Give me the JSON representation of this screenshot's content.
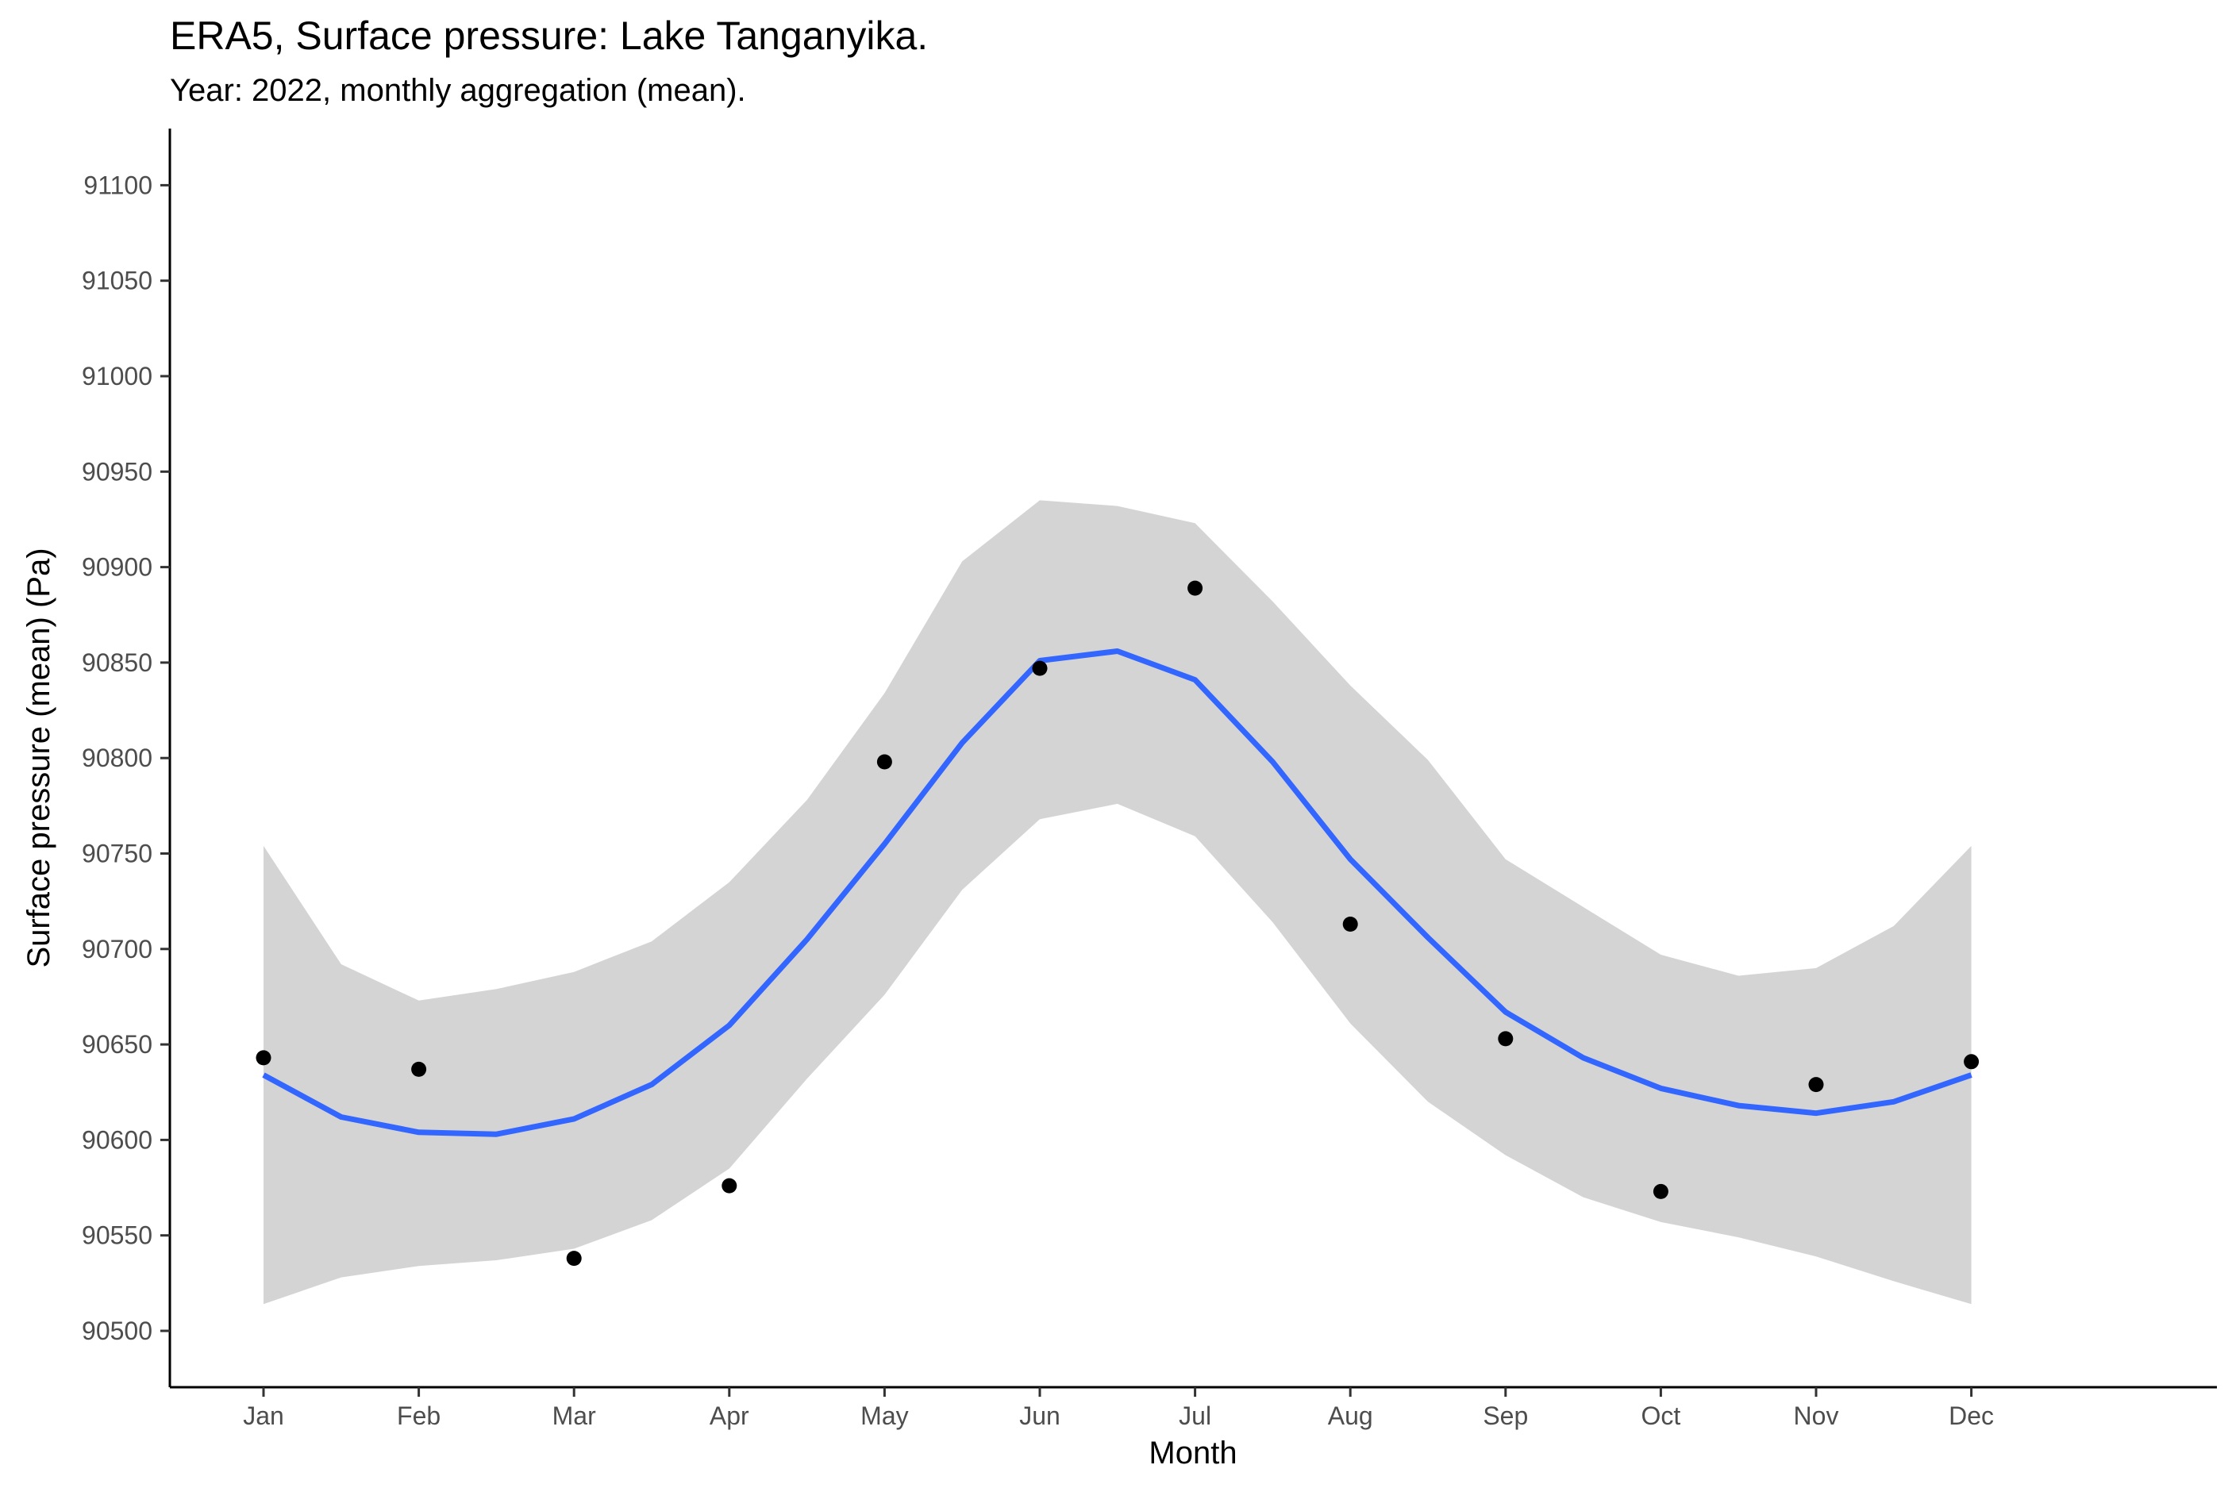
{
  "chart_data": {
    "type": "scatter",
    "title": "ERA5, Surface pressure: Lake Tanganyika.",
    "subtitle": "Year: 2022, monthly aggregation (mean).",
    "xlabel": "Month",
    "ylabel": "Surface pressure (mean) (Pa)",
    "categories": [
      "Jan",
      "Feb",
      "Mar",
      "Apr",
      "May",
      "Jun",
      "Jul",
      "Aug",
      "Sep",
      "Oct",
      "Nov",
      "Dec"
    ],
    "ylim": [
      90470,
      91130
    ],
    "yticks": [
      90500,
      90550,
      90600,
      90650,
      90700,
      90750,
      90800,
      90850,
      90900,
      90950,
      91000,
      91050,
      91100
    ],
    "grid": false,
    "legend": "none",
    "colors": {
      "points": "#000000",
      "smooth": "#3366ff",
      "ribbon": "#d4d4d4"
    },
    "points": [
      {
        "month": "Jan",
        "value": 90643
      },
      {
        "month": "Feb",
        "value": 90637
      },
      {
        "month": "Mar",
        "value": 90538
      },
      {
        "month": "Apr",
        "value": 90576
      },
      {
        "month": "May",
        "value": 90798
      },
      {
        "month": "Jun",
        "value": 90847
      },
      {
        "month": "Jul",
        "value": 90889
      },
      {
        "month": "Aug",
        "value": 90713
      },
      {
        "month": "Sep",
        "value": 90653
      },
      {
        "month": "Oct",
        "value": 90573
      },
      {
        "month": "Nov",
        "value": 90629
      },
      {
        "month": "Dec",
        "value": 90641
      }
    ],
    "smooth": {
      "method": "loess",
      "x": [
        1,
        1.5,
        2,
        2.5,
        3,
        3.5,
        4,
        4.5,
        5,
        5.5,
        6,
        6.5,
        7,
        7.5,
        8,
        8.5,
        9,
        9.5,
        10,
        10.5,
        11,
        11.5,
        12
      ],
      "fit": [
        90634,
        90612,
        90604,
        90603,
        90611,
        90629,
        90660,
        90705,
        90755,
        90808,
        90851,
        90856,
        90841,
        90798,
        90747,
        90706,
        90667,
        90643,
        90627,
        90618,
        90614,
        90620,
        90634
      ],
      "upper": [
        90754,
        90692,
        90673,
        90679,
        90688,
        90704,
        90735,
        90778,
        90834,
        90903,
        90935,
        90932,
        90923,
        90882,
        90838,
        90799,
        90747,
        90722,
        90697,
        90686,
        90690,
        90712,
        90754
      ],
      "lower": [
        90514,
        90528,
        90534,
        90537,
        90543,
        90558,
        90585,
        90632,
        90676,
        90731,
        90768,
        90776,
        90759,
        90714,
        90661,
        90620,
        90592,
        90570,
        90557,
        90549,
        90539,
        90526,
        90514
      ]
    }
  }
}
